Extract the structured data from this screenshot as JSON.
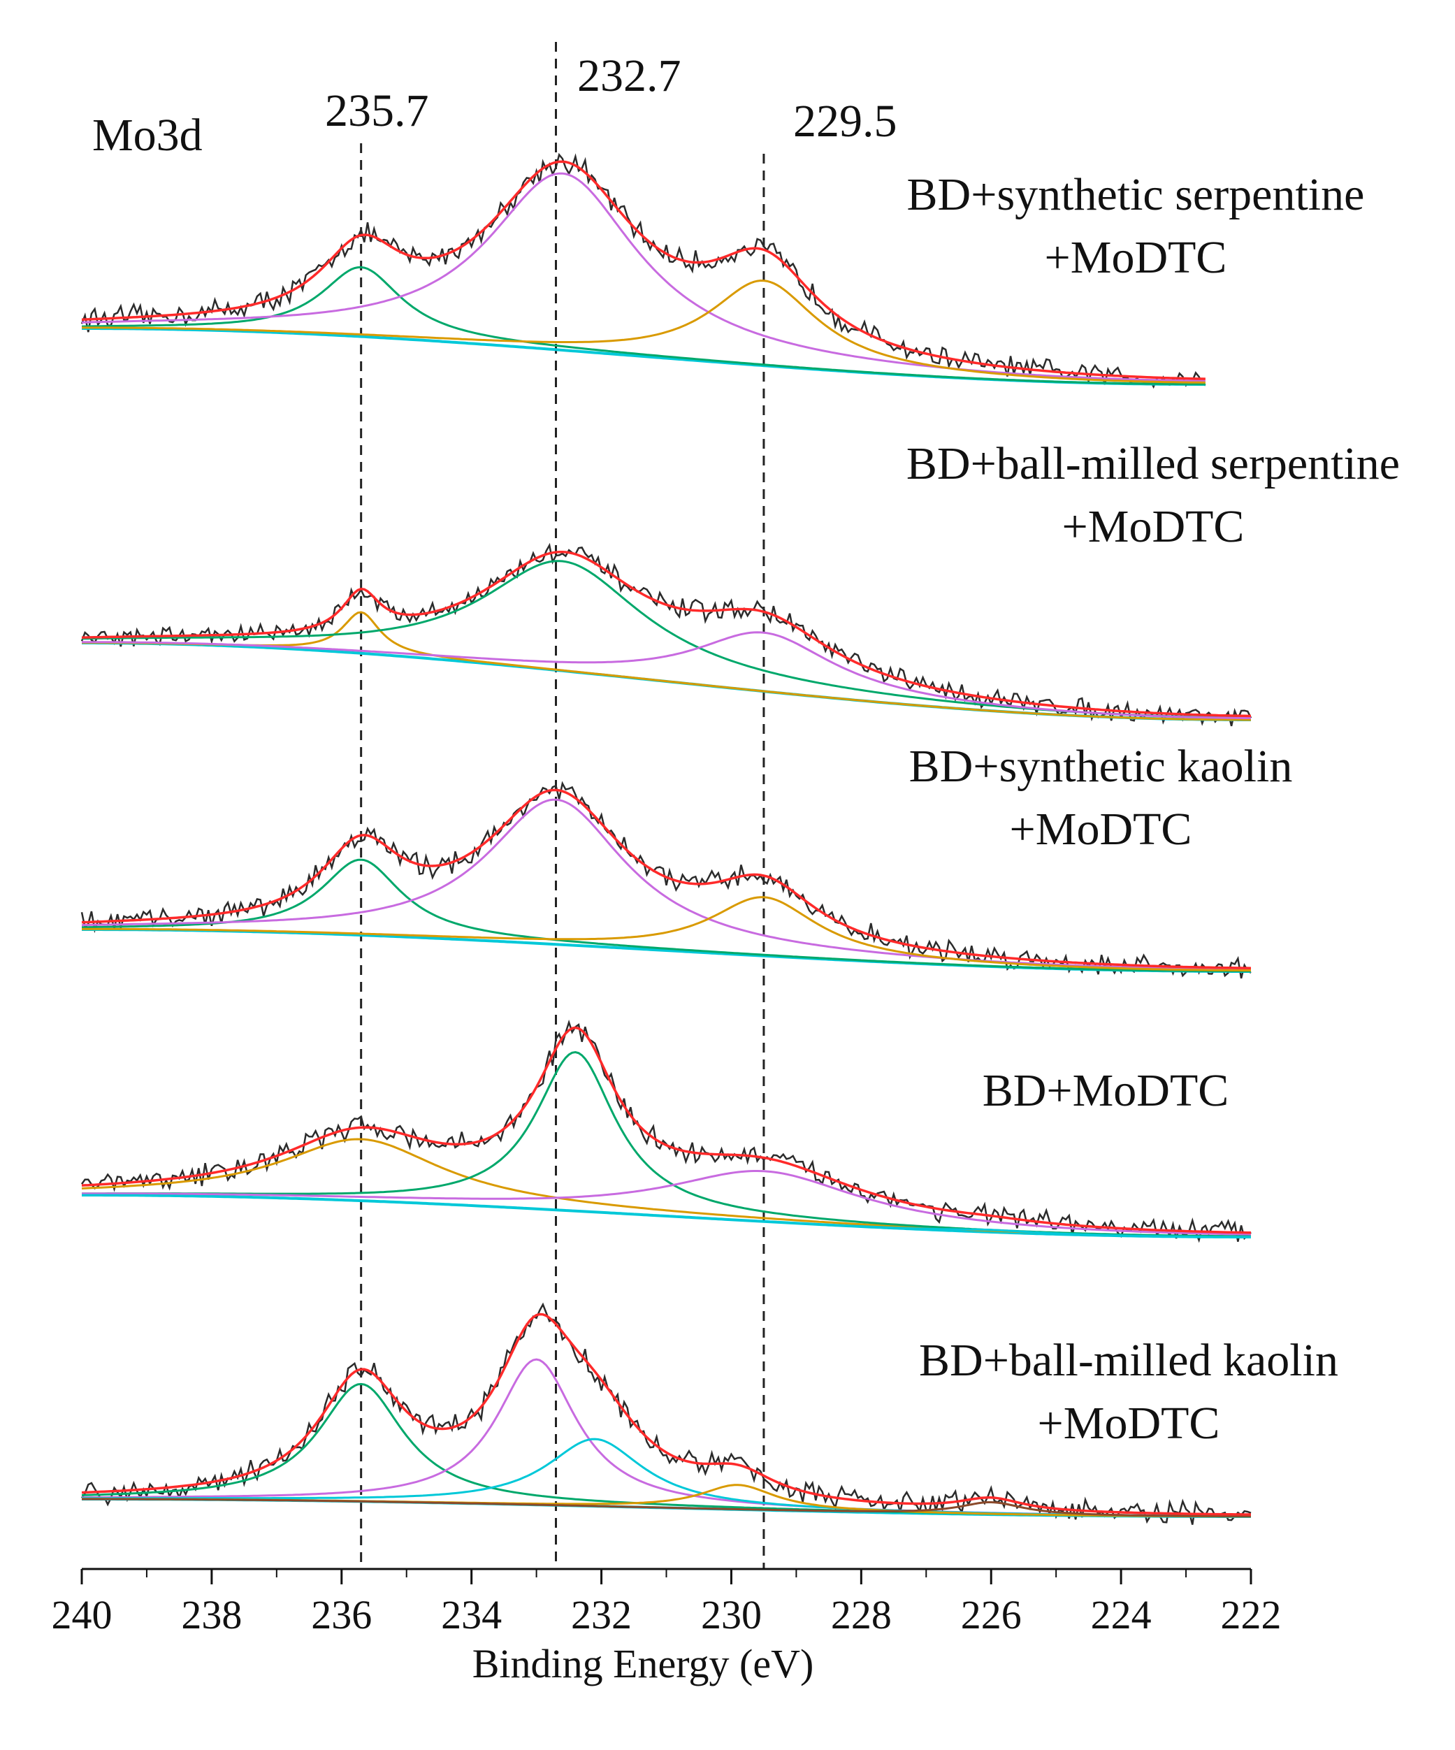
{
  "chart_data": {
    "type": "line",
    "title": "Mo3d",
    "xlabel": "Binding Energy (eV)",
    "ylabel": "",
    "xlim": [
      240,
      222
    ],
    "x_reversed": true,
    "x_ticks": [
      240,
      238,
      236,
      234,
      232,
      230,
      228,
      226,
      224,
      222
    ],
    "grid": false,
    "reference_lines": [
      {
        "x": 235.7,
        "label": "235.7",
        "style": "dashed"
      },
      {
        "x": 232.7,
        "label": "232.7",
        "style": "dashed"
      },
      {
        "x": 229.5,
        "label": "229.5",
        "style": "dashed"
      }
    ],
    "colors": {
      "raw": "#2b2b2b",
      "envelope": "#ff2a2a",
      "green": "#00a86b",
      "violet": "#c86be0",
      "orange": "#d99a00",
      "cyan": "#00c8d8",
      "background": "#00c8d8",
      "brown": "#8b4a2b"
    },
    "spectra": [
      {
        "label_line1": "BD+synthetic serpentine",
        "label_line2": "+MoDTC",
        "x_range": [
          240,
          222.7
        ],
        "baseline": [
          0.18,
          0.05
        ],
        "components": [
          {
            "name": "comp-235.7",
            "center": 235.7,
            "fwhm": 1.5,
            "height": 0.62,
            "color": "green"
          },
          {
            "name": "comp-232.6",
            "center": 232.6,
            "fwhm": 2.8,
            "height": 1.58,
            "color": "violet"
          },
          {
            "name": "comp-229.5",
            "center": 229.5,
            "fwhm": 2.0,
            "height": 0.76,
            "color": "orange"
          }
        ]
      },
      {
        "label_line1": "BD+ball-milled serpentine",
        "label_line2": "+MoDTC",
        "x_range": [
          240,
          222
        ],
        "baseline": [
          0.12,
          0.02
        ],
        "components": [
          {
            "name": "comp-235.7",
            "center": 235.7,
            "fwhm": 0.7,
            "height": 0.42,
            "color": "orange"
          },
          {
            "name": "comp-232.6",
            "center": 232.6,
            "fwhm": 3.0,
            "height": 1.12,
            "color": "green"
          },
          {
            "name": "comp-229.5",
            "center": 229.5,
            "fwhm": 2.6,
            "height": 0.6,
            "color": "violet"
          }
        ]
      },
      {
        "label_line1": "BD+synthetic kaolin",
        "label_line2": "+MoDTC",
        "x_range": [
          240,
          222
        ],
        "baseline": [
          0.08,
          0.02
        ],
        "components": [
          {
            "name": "comp-235.7",
            "center": 235.7,
            "fwhm": 1.5,
            "height": 0.72,
            "color": "green"
          },
          {
            "name": "comp-232.7",
            "center": 232.7,
            "fwhm": 2.6,
            "height": 1.38,
            "color": "violet"
          },
          {
            "name": "comp-229.5",
            "center": 229.5,
            "fwhm": 2.0,
            "height": 0.56,
            "color": "orange"
          }
        ]
      },
      {
        "label_line1": "BD+MoDTC",
        "label_line2": "",
        "x_range": [
          240,
          222
        ],
        "baseline": [
          0.05,
          0.0
        ],
        "components": [
          {
            "name": "comp-235.7",
            "center": 235.7,
            "fwhm": 3.0,
            "height": 0.55,
            "color": "orange"
          },
          {
            "name": "comp-232.4",
            "center": 232.4,
            "fwhm": 1.5,
            "height": 1.42,
            "color": "green"
          },
          {
            "name": "comp-229.5",
            "center": 229.5,
            "fwhm": 3.6,
            "height": 0.45,
            "color": "violet"
          },
          {
            "name": "comp-226.0",
            "center": 226.0,
            "fwhm": 1.5,
            "height": 0.02,
            "color": "cyan"
          }
        ]
      },
      {
        "label_line1": "BD+ball-milled kaolin",
        "label_line2": "+MoDTC",
        "x_range": [
          240,
          222
        ],
        "baseline": [
          0.05,
          0.0
        ],
        "components": [
          {
            "name": "comp-235.7",
            "center": 235.7,
            "fwhm": 1.6,
            "height": 1.05,
            "color": "green"
          },
          {
            "name": "comp-233.0",
            "center": 233.0,
            "fwhm": 1.5,
            "height": 1.3,
            "color": "violet"
          },
          {
            "name": "comp-232.1",
            "center": 232.1,
            "fwhm": 1.8,
            "height": 0.6,
            "color": "cyan"
          },
          {
            "name": "comp-229.9",
            "center": 229.9,
            "fwhm": 1.4,
            "height": 0.22,
            "color": "orange"
          },
          {
            "name": "comp-226.0",
            "center": 226.0,
            "fwhm": 1.2,
            "height": 0.11,
            "color": "brown"
          }
        ]
      }
    ]
  }
}
